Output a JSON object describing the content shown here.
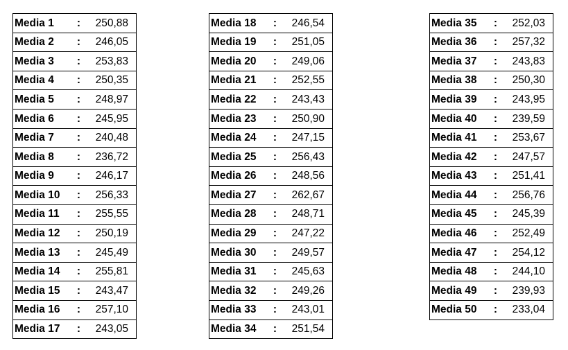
{
  "separator": ":",
  "tables": [
    {
      "rows": [
        {
          "label": "Media 1",
          "value": "250,88"
        },
        {
          "label": "Media 2",
          "value": "246,05"
        },
        {
          "label": "Media 3",
          "value": "253,83"
        },
        {
          "label": "Media 4",
          "value": "250,35"
        },
        {
          "label": "Media 5",
          "value": "248,97"
        },
        {
          "label": "Media 6",
          "value": "245,95"
        },
        {
          "label": "Media 7",
          "value": "240,48"
        },
        {
          "label": "Media 8",
          "value": "236,72"
        },
        {
          "label": "Media 9",
          "value": "246,17"
        },
        {
          "label": "Media 10",
          "value": "256,33"
        },
        {
          "label": "Media 11",
          "value": "255,55"
        },
        {
          "label": "Media 12",
          "value": "250,19"
        },
        {
          "label": "Media 13",
          "value": "245,49"
        },
        {
          "label": "Media 14",
          "value": "255,81"
        },
        {
          "label": "Media 15",
          "value": "243,47"
        },
        {
          "label": "Media 16",
          "value": "257,10"
        },
        {
          "label": "Media 17",
          "value": "243,05"
        }
      ]
    },
    {
      "rows": [
        {
          "label": "Media 18",
          "value": "246,54"
        },
        {
          "label": "Media 19",
          "value": "251,05"
        },
        {
          "label": "Media 20",
          "value": "249,06"
        },
        {
          "label": "Media 21",
          "value": "252,55"
        },
        {
          "label": "Media 22",
          "value": "243,43"
        },
        {
          "label": "Media 23",
          "value": "250,90"
        },
        {
          "label": "Media 24",
          "value": "247,15"
        },
        {
          "label": "Media 25",
          "value": "256,43"
        },
        {
          "label": "Media 26",
          "value": "248,56"
        },
        {
          "label": "Media 27",
          "value": "262,67"
        },
        {
          "label": "Media 28",
          "value": "248,71"
        },
        {
          "label": "Media 29",
          "value": "247,22"
        },
        {
          "label": "Media 30",
          "value": "249,57"
        },
        {
          "label": "Media 31",
          "value": "245,63"
        },
        {
          "label": "Media 32",
          "value": "249,26"
        },
        {
          "label": "Media 33",
          "value": "243,01"
        },
        {
          "label": "Media 34",
          "value": "251,54"
        }
      ]
    },
    {
      "rows": [
        {
          "label": "Media 35",
          "value": "252,03"
        },
        {
          "label": "Media 36",
          "value": "257,32"
        },
        {
          "label": "Media 37",
          "value": "243,83"
        },
        {
          "label": "Media 38",
          "value": "250,30"
        },
        {
          "label": "Media 39",
          "value": "243,95"
        },
        {
          "label": "Media 40",
          "value": "239,59"
        },
        {
          "label": "Media 41",
          "value": "253,67"
        },
        {
          "label": "Media 42",
          "value": "247,57"
        },
        {
          "label": "Media 43",
          "value": "251,41"
        },
        {
          "label": "Media 44",
          "value": "256,76"
        },
        {
          "label": "Media 45",
          "value": "245,39"
        },
        {
          "label": "Media 46",
          "value": "252,49"
        },
        {
          "label": "Media 47",
          "value": "254,12"
        },
        {
          "label": "Media 48",
          "value": "244,10"
        },
        {
          "label": "Media 49",
          "value": "239,93"
        },
        {
          "label": "Media 50",
          "value": "233,04"
        }
      ]
    }
  ]
}
